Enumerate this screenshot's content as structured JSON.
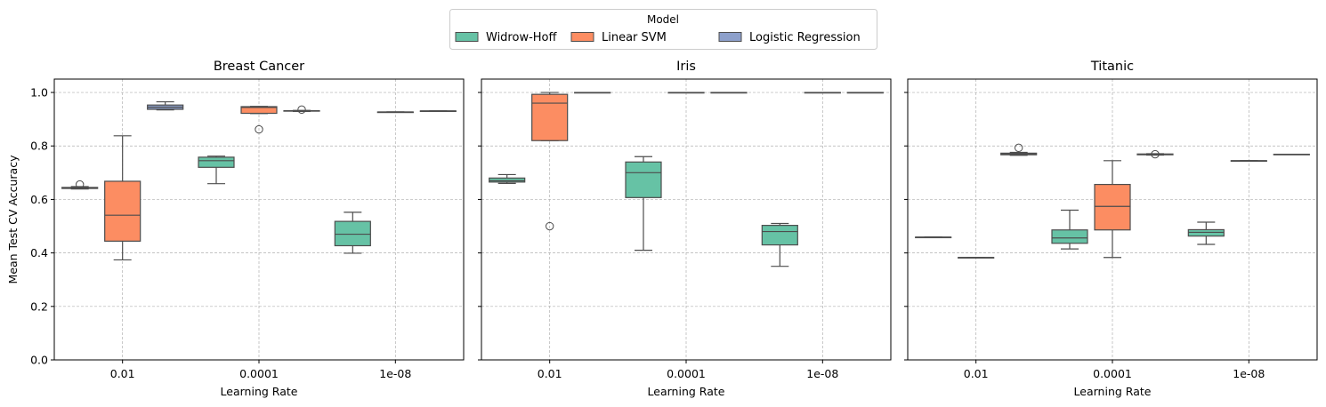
{
  "chart_data": {
    "type": "box",
    "legend": {
      "title": "Model",
      "placement": "top-center",
      "entries": [
        {
          "label": "Widrow-Hoff",
          "color": "#66c2a5"
        },
        {
          "label": "Linear SVM",
          "color": "#fc8d62"
        },
        {
          "label": "Logistic Regression",
          "color": "#8da0cb"
        }
      ]
    },
    "shared": {
      "ylabel": "Mean Test CV Accuracy",
      "xlabel": "Learning Rate",
      "categories": [
        "0.01",
        "0.0001",
        "1e-08"
      ],
      "ylim": [
        0,
        1.05
      ],
      "yticks": [
        "0.0",
        "0.2",
        "0.4",
        "0.6",
        "0.8",
        "1.0"
      ],
      "grid": true
    },
    "panels": [
      {
        "title": "Breast Cancer",
        "boxes": [
          {
            "category": "0.01",
            "hue": "Logistic Regression",
            "min": 0.935,
            "q1": 0.937,
            "median": 0.945,
            "q3": 0.953,
            "max": 0.965,
            "outliers": []
          },
          {
            "category": "0.01",
            "hue": "Linear SVM",
            "min": 0.374,
            "q1": 0.444,
            "median": 0.541,
            "q3": 0.668,
            "max": 0.838,
            "outliers": []
          },
          {
            "category": "0.01",
            "hue": "Widrow-Hoff",
            "min": 0.639,
            "q1": 0.641,
            "median": 0.643,
            "q3": 0.645,
            "max": 0.648,
            "outliers": [
              0.656
            ]
          },
          {
            "category": "0.0001",
            "hue": "Logistic Regression",
            "min": 0.929,
            "q1": 0.93,
            "median": 0.931,
            "q3": 0.932,
            "max": 0.933,
            "outliers": [
              0.936
            ]
          },
          {
            "category": "0.0001",
            "hue": "Linear SVM",
            "min": 0.921,
            "q1": 0.922,
            "median": 0.944,
            "q3": 0.947,
            "max": 0.948,
            "outliers": [
              0.862
            ]
          },
          {
            "category": "0.0001",
            "hue": "Widrow-Hoff",
            "min": 0.659,
            "q1": 0.72,
            "median": 0.745,
            "q3": 0.758,
            "max": 0.762,
            "outliers": []
          },
          {
            "category": "1e-08",
            "hue": "Logistic Regression",
            "min": 0.931,
            "q1": 0.931,
            "median": 0.931,
            "q3": 0.931,
            "max": 0.931,
            "outliers": []
          },
          {
            "category": "1e-08",
            "hue": "Linear SVM",
            "min": 0.927,
            "q1": 0.927,
            "median": 0.927,
            "q3": 0.927,
            "max": 0.927,
            "outliers": []
          },
          {
            "category": "1e-08",
            "hue": "Widrow-Hoff",
            "min": 0.399,
            "q1": 0.427,
            "median": 0.47,
            "q3": 0.518,
            "max": 0.552,
            "outliers": []
          }
        ]
      },
      {
        "title": "Iris",
        "boxes": [
          {
            "category": "0.01",
            "hue": "Logistic Regression",
            "min": 1.0,
            "q1": 1.0,
            "median": 1.0,
            "q3": 1.0,
            "max": 1.0,
            "outliers": []
          },
          {
            "category": "0.01",
            "hue": "Linear SVM",
            "min": 0.82,
            "q1": 0.82,
            "median": 0.96,
            "q3": 0.993,
            "max": 1.0,
            "outliers": [
              0.5
            ]
          },
          {
            "category": "0.01",
            "hue": "Widrow-Hoff",
            "min": 0.66,
            "q1": 0.665,
            "median": 0.67,
            "q3": 0.68,
            "max": 0.693,
            "outliers": []
          },
          {
            "category": "0.0001",
            "hue": "Logistic Regression",
            "min": 1.0,
            "q1": 1.0,
            "median": 1.0,
            "q3": 1.0,
            "max": 1.0,
            "outliers": []
          },
          {
            "category": "0.0001",
            "hue": "Linear SVM",
            "min": 1.0,
            "q1": 1.0,
            "median": 1.0,
            "q3": 1.0,
            "max": 1.0,
            "outliers": []
          },
          {
            "category": "0.0001",
            "hue": "Widrow-Hoff",
            "min": 0.41,
            "q1": 0.607,
            "median": 0.7,
            "q3": 0.74,
            "max": 0.76,
            "outliers": []
          },
          {
            "category": "1e-08",
            "hue": "Logistic Regression",
            "min": 1.0,
            "q1": 1.0,
            "median": 1.0,
            "q3": 1.0,
            "max": 1.0,
            "outliers": []
          },
          {
            "category": "1e-08",
            "hue": "Linear SVM",
            "min": 1.0,
            "q1": 1.0,
            "median": 1.0,
            "q3": 1.0,
            "max": 1.0,
            "outliers": []
          },
          {
            "category": "1e-08",
            "hue": "Widrow-Hoff",
            "min": 0.35,
            "q1": 0.43,
            "median": 0.48,
            "q3": 0.503,
            "max": 0.51,
            "outliers": []
          }
        ]
      },
      {
        "title": "Titanic",
        "boxes": [
          {
            "category": "0.01",
            "hue": "Logistic Regression",
            "min": 0.765,
            "q1": 0.767,
            "median": 0.77,
            "q3": 0.773,
            "max": 0.776,
            "outliers": [
              0.793
            ]
          },
          {
            "category": "0.01",
            "hue": "Linear SVM",
            "min": 0.383,
            "q1": 0.383,
            "median": 0.383,
            "q3": 0.383,
            "max": 0.383,
            "outliers": []
          },
          {
            "category": "0.01",
            "hue": "Widrow-Hoff",
            "min": 0.459,
            "q1": 0.459,
            "median": 0.459,
            "q3": 0.459,
            "max": 0.459,
            "outliers": []
          },
          {
            "category": "0.0001",
            "hue": "Logistic Regression",
            "min": 0.766,
            "q1": 0.767,
            "median": 0.769,
            "q3": 0.77,
            "max": 0.771,
            "outliers": [
              0.769
            ]
          },
          {
            "category": "0.0001",
            "hue": "Linear SVM",
            "min": 0.383,
            "q1": 0.486,
            "median": 0.574,
            "q3": 0.656,
            "max": 0.745,
            "outliers": []
          },
          {
            "category": "0.0001",
            "hue": "Widrow-Hoff",
            "min": 0.415,
            "q1": 0.436,
            "median": 0.456,
            "q3": 0.486,
            "max": 0.56,
            "outliers": []
          },
          {
            "category": "1e-08",
            "hue": "Logistic Regression",
            "min": 0.769,
            "q1": 0.769,
            "median": 0.769,
            "q3": 0.769,
            "max": 0.769,
            "outliers": []
          },
          {
            "category": "1e-08",
            "hue": "Linear SVM",
            "min": 0.745,
            "q1": 0.745,
            "median": 0.745,
            "q3": 0.745,
            "max": 0.745,
            "outliers": []
          },
          {
            "category": "1e-08",
            "hue": "Widrow-Hoff",
            "min": 0.432,
            "q1": 0.463,
            "median": 0.477,
            "q3": 0.487,
            "max": 0.515,
            "outliers": []
          }
        ]
      }
    ]
  }
}
